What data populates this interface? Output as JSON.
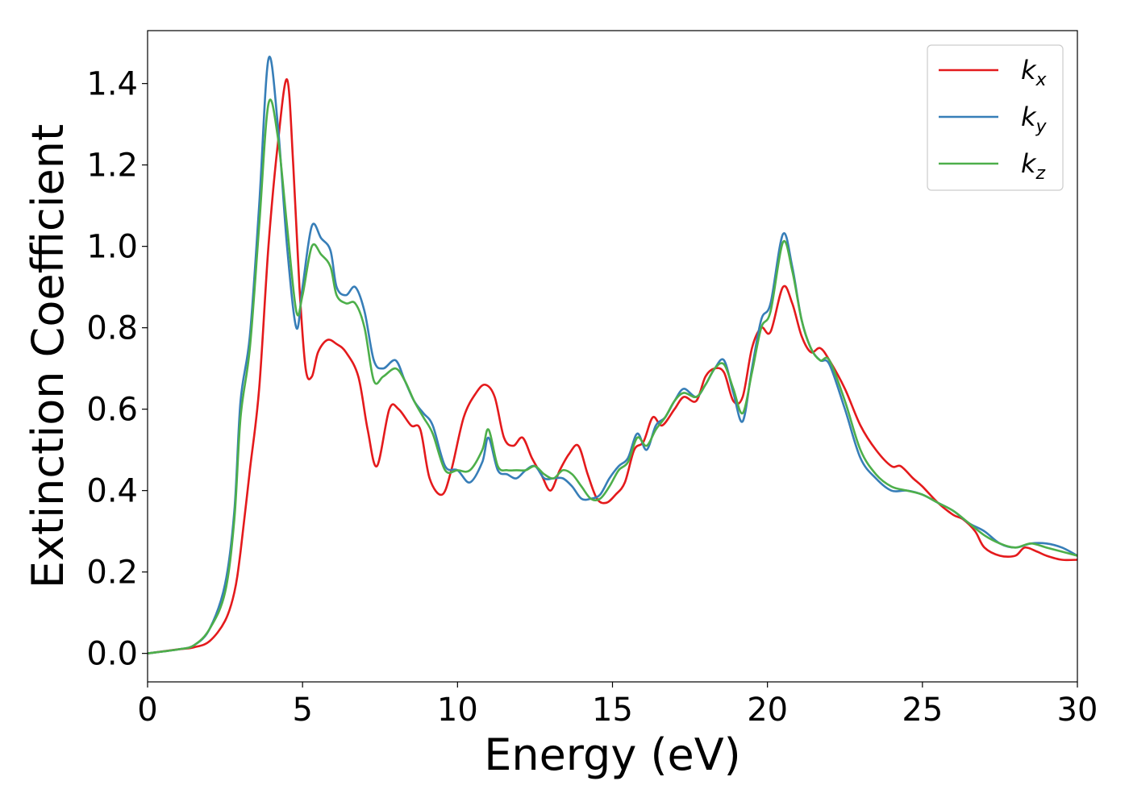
{
  "chart_data": {
    "type": "line",
    "title": "",
    "xlabel": "Energy (eV)",
    "ylabel": "Extinction Coefficient",
    "xlim": [
      0,
      30
    ],
    "ylim": [
      -0.07,
      1.53
    ],
    "xticks": [
      0,
      5,
      10,
      15,
      20,
      25,
      30
    ],
    "yticks": [
      0.0,
      0.2,
      0.4,
      0.6,
      0.8,
      1.0,
      1.2,
      1.4
    ],
    "grid": false,
    "legend_position": "top-right",
    "series": [
      {
        "name": "k",
        "subscript": "x",
        "color": "#e41a1c",
        "x": [
          0,
          1,
          1.5,
          2,
          2.5,
          2.8,
          3,
          3.3,
          3.6,
          3.9,
          4.2,
          4.5,
          4.7,
          4.9,
          5.1,
          5.3,
          5.5,
          5.8,
          6.1,
          6.4,
          6.8,
          7.1,
          7.4,
          7.8,
          8.1,
          8.5,
          8.8,
          9.1,
          9.5,
          9.8,
          10.2,
          10.6,
          10.9,
          11.2,
          11.5,
          11.8,
          12.1,
          12.4,
          12.7,
          13,
          13.3,
          13.6,
          13.9,
          14.2,
          14.5,
          14.8,
          15.1,
          15.4,
          15.7,
          16,
          16.3,
          16.6,
          17,
          17.3,
          17.7,
          18,
          18.3,
          18.6,
          18.9,
          19.2,
          19.5,
          19.8,
          20.1,
          20.5,
          20.8,
          21.1,
          21.4,
          21.7,
          22,
          22.5,
          23,
          23.5,
          24,
          24.3,
          24.7,
          25,
          25.5,
          26,
          26.3,
          26.7,
          27,
          27.5,
          28,
          28.3,
          28.7,
          29,
          29.5,
          30
        ],
        "y": [
          0.0,
          0.01,
          0.015,
          0.03,
          0.08,
          0.15,
          0.25,
          0.45,
          0.65,
          1.0,
          1.25,
          1.41,
          1.2,
          0.9,
          0.7,
          0.68,
          0.74,
          0.77,
          0.76,
          0.74,
          0.68,
          0.55,
          0.46,
          0.6,
          0.6,
          0.56,
          0.55,
          0.43,
          0.39,
          0.45,
          0.58,
          0.64,
          0.66,
          0.63,
          0.53,
          0.51,
          0.53,
          0.48,
          0.44,
          0.4,
          0.45,
          0.49,
          0.51,
          0.44,
          0.38,
          0.37,
          0.39,
          0.42,
          0.5,
          0.52,
          0.58,
          0.56,
          0.6,
          0.63,
          0.62,
          0.68,
          0.7,
          0.69,
          0.62,
          0.63,
          0.75,
          0.8,
          0.79,
          0.9,
          0.86,
          0.78,
          0.74,
          0.75,
          0.72,
          0.65,
          0.56,
          0.5,
          0.46,
          0.46,
          0.43,
          0.41,
          0.37,
          0.34,
          0.33,
          0.3,
          0.26,
          0.24,
          0.24,
          0.26,
          0.25,
          0.24,
          0.23,
          0.23
        ]
      },
      {
        "name": "k",
        "subscript": "y",
        "color": "#377eb8",
        "x": [
          0,
          1,
          1.5,
          2,
          2.5,
          2.8,
          3,
          3.3,
          3.6,
          3.9,
          4.2,
          4.5,
          4.8,
          5,
          5.3,
          5.6,
          5.9,
          6.1,
          6.4,
          6.7,
          7,
          7.3,
          7.6,
          8,
          8.3,
          8.6,
          8.9,
          9.2,
          9.6,
          10,
          10.4,
          10.8,
          11,
          11.3,
          11.6,
          11.9,
          12.2,
          12.5,
          12.8,
          13.1,
          13.4,
          13.7,
          14,
          14.3,
          14.6,
          14.9,
          15.2,
          15.5,
          15.8,
          16.1,
          16.4,
          16.7,
          17,
          17.3,
          17.7,
          18,
          18.3,
          18.6,
          18.9,
          19.2,
          19.5,
          19.8,
          20.1,
          20.5,
          20.8,
          21.1,
          21.4,
          21.7,
          22,
          22.5,
          23,
          23.5,
          24,
          24.5,
          25,
          25.5,
          26,
          26.5,
          27,
          27.5,
          28,
          28.5,
          29,
          29.5,
          30
        ],
        "y": [
          0.0,
          0.01,
          0.02,
          0.06,
          0.17,
          0.35,
          0.62,
          0.78,
          1.1,
          1.46,
          1.3,
          1.0,
          0.8,
          0.9,
          1.05,
          1.02,
          0.99,
          0.9,
          0.88,
          0.9,
          0.84,
          0.72,
          0.7,
          0.72,
          0.67,
          0.62,
          0.59,
          0.56,
          0.46,
          0.45,
          0.42,
          0.47,
          0.53,
          0.45,
          0.44,
          0.43,
          0.45,
          0.46,
          0.43,
          0.43,
          0.43,
          0.41,
          0.38,
          0.38,
          0.39,
          0.43,
          0.46,
          0.48,
          0.54,
          0.5,
          0.56,
          0.58,
          0.62,
          0.65,
          0.63,
          0.66,
          0.7,
          0.72,
          0.64,
          0.57,
          0.7,
          0.82,
          0.86,
          1.03,
          0.95,
          0.82,
          0.75,
          0.72,
          0.71,
          0.6,
          0.48,
          0.43,
          0.4,
          0.4,
          0.39,
          0.37,
          0.35,
          0.32,
          0.3,
          0.27,
          0.26,
          0.27,
          0.27,
          0.26,
          0.24
        ]
      },
      {
        "name": "k",
        "subscript": "z",
        "color": "#4daf4a",
        "x": [
          0,
          1,
          1.5,
          2,
          2.5,
          2.8,
          3,
          3.3,
          3.6,
          3.9,
          4.2,
          4.5,
          4.8,
          5,
          5.3,
          5.6,
          5.9,
          6.1,
          6.4,
          6.7,
          7,
          7.3,
          7.6,
          8,
          8.3,
          8.6,
          8.9,
          9.2,
          9.6,
          10,
          10.4,
          10.8,
          11,
          11.3,
          11.6,
          11.9,
          12.2,
          12.5,
          12.8,
          13.1,
          13.4,
          13.7,
          14,
          14.3,
          14.6,
          14.9,
          15.2,
          15.5,
          15.8,
          16.1,
          16.4,
          16.7,
          17,
          17.3,
          17.7,
          18,
          18.3,
          18.6,
          18.9,
          19.2,
          19.5,
          19.8,
          20.1,
          20.5,
          20.8,
          21.1,
          21.4,
          21.7,
          22,
          22.5,
          23,
          23.5,
          24,
          24.5,
          25,
          25.5,
          26,
          26.5,
          27,
          27.5,
          28,
          28.5,
          29,
          29.5,
          30
        ],
        "y": [
          0.0,
          0.01,
          0.02,
          0.06,
          0.15,
          0.33,
          0.58,
          0.75,
          1.05,
          1.35,
          1.27,
          1.05,
          0.84,
          0.88,
          1.0,
          0.98,
          0.95,
          0.88,
          0.86,
          0.86,
          0.8,
          0.67,
          0.68,
          0.7,
          0.67,
          0.62,
          0.58,
          0.54,
          0.45,
          0.45,
          0.45,
          0.5,
          0.55,
          0.46,
          0.45,
          0.45,
          0.45,
          0.46,
          0.44,
          0.43,
          0.45,
          0.44,
          0.41,
          0.38,
          0.38,
          0.41,
          0.45,
          0.47,
          0.53,
          0.51,
          0.55,
          0.58,
          0.62,
          0.64,
          0.63,
          0.66,
          0.7,
          0.71,
          0.65,
          0.59,
          0.69,
          0.8,
          0.84,
          1.01,
          0.94,
          0.82,
          0.75,
          0.72,
          0.72,
          0.62,
          0.5,
          0.44,
          0.41,
          0.4,
          0.39,
          0.37,
          0.35,
          0.32,
          0.29,
          0.27,
          0.26,
          0.27,
          0.26,
          0.25,
          0.24
        ]
      }
    ]
  }
}
